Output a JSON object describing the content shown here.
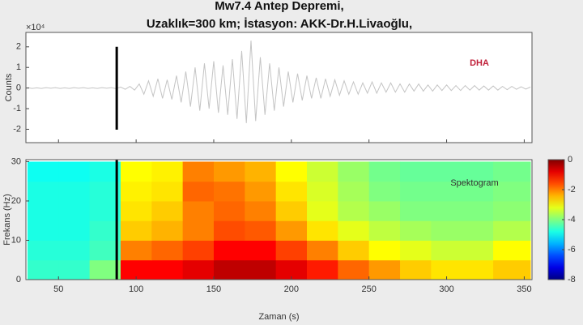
{
  "chart_data": [
    {
      "type": "line",
      "title": "Mw7.4 Antep Depremi,",
      "subtitle": "Uzaklık=300 km; İstasyon: AKK-Dr.H.Livaoğlu,",
      "ylabel": "Counts",
      "yscale_label": "×10⁴",
      "annotation": "DHA",
      "color": "#c4c4c4",
      "xlim": [
        29,
        355
      ],
      "ylim": [
        -2.65,
        2.7
      ],
      "yticks": [
        -2,
        -1,
        0,
        1,
        2
      ],
      "vline": 87.5,
      "x": [
        30,
        33,
        36,
        39,
        42,
        45,
        48,
        51,
        54,
        57,
        60,
        63,
        66,
        69,
        72,
        75,
        78,
        81,
        84,
        87,
        90,
        93,
        96,
        99,
        102,
        105,
        108,
        111,
        114,
        117,
        120,
        123,
        126,
        129,
        132,
        135,
        138,
        141,
        144,
        147,
        150,
        153,
        156,
        159,
        162,
        165,
        168,
        171,
        174,
        177,
        180,
        183,
        186,
        189,
        192,
        195,
        198,
        201,
        204,
        207,
        210,
        213,
        216,
        219,
        222,
        225,
        228,
        231,
        234,
        237,
        240,
        243,
        246,
        249,
        252,
        255,
        258,
        261,
        264,
        267,
        270,
        273,
        276,
        279,
        282,
        285,
        288,
        291,
        294,
        297,
        300,
        303,
        306,
        309,
        312,
        315,
        318,
        321,
        324,
        327,
        330,
        333,
        336,
        339,
        342,
        345,
        348,
        351,
        354
      ],
      "values": [
        0.02,
        -0.02,
        0.01,
        -0.02,
        0.02,
        -0.01,
        0.02,
        -0.02,
        0.01,
        -0.02,
        0.02,
        -0.01,
        0.02,
        -0.02,
        0.01,
        -0.02,
        0.02,
        -0.01,
        0.02,
        -0.03,
        0.05,
        -0.06,
        0.08,
        -0.1,
        0.2,
        -0.3,
        0.35,
        -0.4,
        0.45,
        -0.5,
        0.4,
        -0.55,
        0.6,
        -0.7,
        0.8,
        -0.9,
        1.0,
        -1.1,
        1.2,
        -1.0,
        1.3,
        -1.2,
        1.1,
        -1.3,
        1.4,
        -1.5,
        1.8,
        -1.7,
        2.3,
        -1.6,
        1.5,
        -1.3,
        1.2,
        -1.1,
        1.0,
        -0.9,
        0.8,
        -0.7,
        0.7,
        -0.6,
        0.6,
        -0.5,
        0.5,
        -0.5,
        0.45,
        -0.4,
        0.4,
        -0.35,
        0.35,
        -0.3,
        0.3,
        -0.3,
        0.25,
        -0.25,
        0.3,
        -0.25,
        0.25,
        -0.2,
        0.25,
        -0.2,
        0.2,
        -0.2,
        0.2,
        -0.15,
        0.2,
        -0.15,
        0.15,
        -0.15,
        0.15,
        -0.12,
        0.15,
        -0.12,
        0.12,
        -0.12,
        0.12,
        -0.1,
        0.12,
        -0.1,
        0.1,
        -0.1,
        0.1,
        -0.1,
        0.08,
        -0.08,
        0.08,
        -0.06,
        0.06,
        -0.05,
        0.05
      ]
    },
    {
      "type": "heatmap",
      "xlabel": "Zaman (s)",
      "ylabel": "Frekans (Hz)",
      "annotation": "Spektogram",
      "colormap": "jet",
      "xlim": [
        29,
        355
      ],
      "ylim": [
        0,
        30.5
      ],
      "xticks": [
        50,
        100,
        150,
        200,
        250,
        300,
        350
      ],
      "yticks": [
        0,
        10,
        20,
        30
      ],
      "vline": 87.5,
      "x_edges": [
        30,
        50,
        70,
        90,
        110,
        130,
        150,
        170,
        190,
        210,
        230,
        250,
        270,
        290,
        310,
        330,
        354
      ],
      "y_edges": [
        0,
        5,
        10,
        15,
        20,
        25,
        30
      ],
      "z": [
        [
          -4.6,
          -4.6,
          -4,
          -1,
          -1,
          -0.8,
          -0.5,
          -0.5,
          -0.8,
          -1.2,
          -1.8,
          -2.2,
          -2.6,
          -2.8,
          -2.8,
          -2.6
        ],
        [
          -4.7,
          -4.7,
          -4.5,
          -2,
          -1.8,
          -1.5,
          -1,
          -1,
          -1.5,
          -2,
          -2.6,
          -3,
          -3.2,
          -3.4,
          -3.4,
          -3
        ],
        [
          -4.8,
          -4.8,
          -4.6,
          -2.6,
          -2.4,
          -2,
          -1.6,
          -1.7,
          -2.2,
          -2.8,
          -3.2,
          -3.5,
          -3.7,
          -3.8,
          -3.8,
          -3.6
        ],
        [
          -4.8,
          -4.8,
          -4.7,
          -2.8,
          -2.6,
          -2,
          -1.8,
          -2,
          -2.6,
          -3.2,
          -3.6,
          -3.8,
          -4,
          -4,
          -4,
          -3.9
        ],
        [
          -4.8,
          -4.8,
          -4.7,
          -2.9,
          -2.8,
          -1.8,
          -1.9,
          -2.2,
          -2.8,
          -3.3,
          -3.7,
          -4,
          -4.1,
          -4.1,
          -4.1,
          -4
        ],
        [
          -4.9,
          -4.9,
          -4.8,
          -3,
          -2.9,
          -2,
          -2.2,
          -2.4,
          -3,
          -3.4,
          -3.8,
          -4.1,
          -4.2,
          -4.2,
          -4.2,
          -4.1
        ]
      ],
      "colorbar": {
        "lim": [
          -8,
          0
        ],
        "ticks": [
          0,
          -2,
          -4,
          -6,
          -8
        ]
      }
    }
  ]
}
